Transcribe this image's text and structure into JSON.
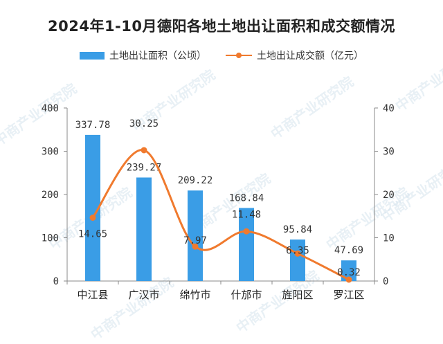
{
  "title": "2024年1-10月德阳各地土地出让面积和成交额情况",
  "watermark": "中商产业研究院",
  "colors": {
    "bar": "#3a9de6",
    "line": "#f07a2e",
    "axis": "#888888",
    "text": "#333333"
  },
  "chart_data": {
    "type": "bar",
    "categories": [
      "中江县",
      "广汉市",
      "绵竹市",
      "什邡市",
      "旌阳区",
      "罗江区"
    ],
    "series": [
      {
        "name": "土地出让面积（公顷）",
        "type": "bar",
        "axis": "left",
        "values": [
          337.78,
          239.27,
          209.22,
          168.84,
          95.84,
          47.69
        ],
        "labels": [
          "337.78",
          "239.27",
          "209.22",
          "168.84",
          "95.84",
          "47.69"
        ]
      },
      {
        "name": "土地出让成交额（亿元）",
        "type": "line",
        "axis": "right",
        "smooth": true,
        "values": [
          14.65,
          30.25,
          7.97,
          11.48,
          6.35,
          0.32
        ],
        "labels": [
          "14.65",
          "30.25",
          "7.97",
          "11.48",
          "6.35",
          "0.32"
        ]
      }
    ],
    "y_left": {
      "min": 0,
      "max": 400,
      "ticks": [
        0,
        100,
        200,
        300,
        400
      ]
    },
    "y_right": {
      "min": 0,
      "max": 40,
      "ticks": [
        0,
        10,
        20,
        30,
        40
      ]
    },
    "grid": false,
    "legend": "top-center"
  }
}
